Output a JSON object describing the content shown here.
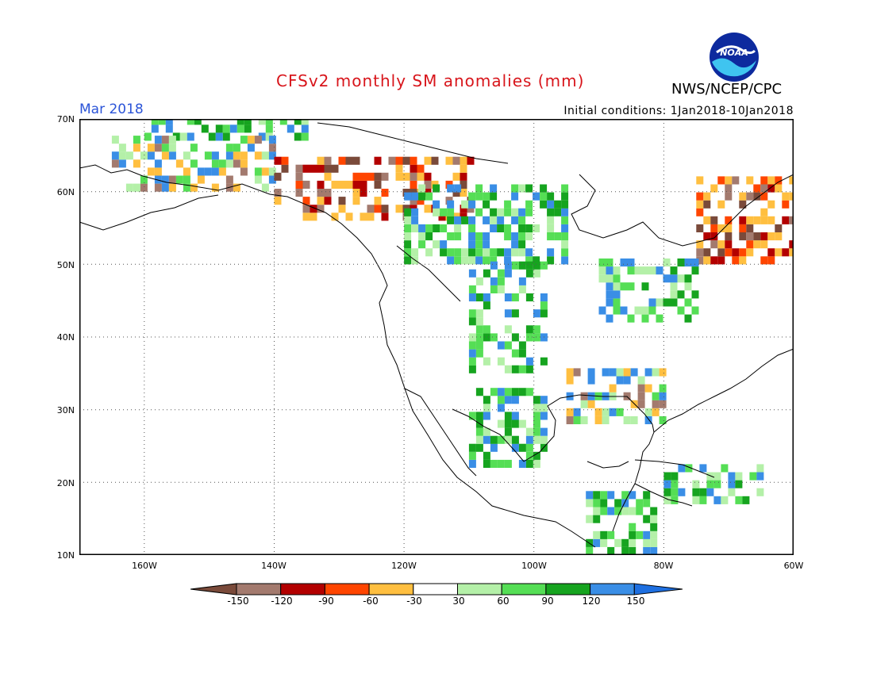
{
  "title": "CFSv2 monthly SM anomalies (mm)",
  "valid_month": "Mar 2018",
  "initial_conditions": "Initial conditions: 1Jan2018-10Jan2018",
  "agency": "NWS/NCEP/CPC",
  "logo_text": "NOAA",
  "map": {
    "lon_range": [
      -170,
      -60
    ],
    "lat_range": [
      10,
      70
    ],
    "lat_ticks": [
      "10N",
      "20N",
      "30N",
      "40N",
      "50N",
      "60N",
      "70N"
    ],
    "lon_ticks": [
      "160W",
      "140W",
      "120W",
      "100W",
      "80W",
      "60W"
    ],
    "gridlines": "dotted"
  },
  "colorbar": {
    "labels": [
      "-150",
      "-120",
      "-90",
      "-60",
      "-30",
      "30",
      "60",
      "90",
      "120",
      "150"
    ],
    "colors": [
      "#7a4a3a",
      "#a37a6e",
      "#b30000",
      "#ff4500",
      "#ffbf40",
      "#ffffff",
      "#b4f0a8",
      "#55de55",
      "#16a41f",
      "#3a8ee6",
      "#1e6fe0"
    ]
  },
  "anomaly_regions": [
    {
      "name": "alaska-north-slope",
      "lon": [
        -160,
        -135
      ],
      "lat": [
        67,
        70
      ],
      "class": "wet-strong"
    },
    {
      "name": "alaska-interior",
      "lon": [
        -165,
        -140
      ],
      "lat": [
        60,
        67
      ],
      "class": "mixed"
    },
    {
      "name": "yukon-bc-dry",
      "lon": [
        -140,
        -110
      ],
      "lat": [
        56,
        64
      ],
      "class": "dry"
    },
    {
      "name": "central-canada-wet",
      "lon": [
        -120,
        -95
      ],
      "lat": [
        50,
        60
      ],
      "class": "wet-moderate"
    },
    {
      "name": "northern-plains-wet",
      "lon": [
        -110,
        -98
      ],
      "lat": [
        35,
        50
      ],
      "class": "wet-strong"
    },
    {
      "name": "mexico-plateau",
      "lon": [
        -110,
        -98
      ],
      "lat": [
        22,
        33
      ],
      "class": "wet-strong"
    },
    {
      "name": "quebec-labrador-dry",
      "lon": [
        -75,
        -60
      ],
      "lat": [
        50,
        62
      ],
      "class": "dry"
    },
    {
      "name": "great-lakes-wet",
      "lon": [
        -90,
        -75
      ],
      "lat": [
        42,
        50
      ],
      "class": "wet-moderate"
    },
    {
      "name": "southeast-us",
      "lon": [
        -95,
        -80
      ],
      "lat": [
        28,
        35
      ],
      "class": "mixed"
    },
    {
      "name": "central-america-wet",
      "lon": [
        -92,
        -82
      ],
      "lat": [
        10,
        18
      ],
      "class": "wet-moderate"
    },
    {
      "name": "caribbean-wet",
      "lon": [
        -80,
        -65
      ],
      "lat": [
        17,
        22
      ],
      "class": "wet-strong"
    }
  ]
}
